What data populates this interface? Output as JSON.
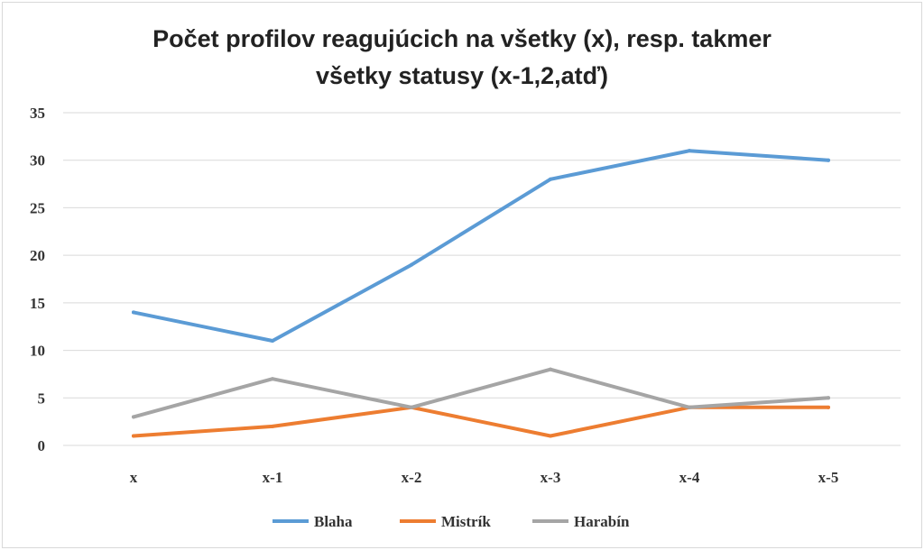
{
  "chart_data": {
    "type": "line",
    "title_lines": [
      "Počet profilov reagujúcich na všetky (x), resp. takmer",
      "všetky statusy (x-1,2,atď)"
    ],
    "categories": [
      "x",
      "x-1",
      "x-2",
      "x-3",
      "x-4",
      "x-5"
    ],
    "series": [
      {
        "name": "Blaha",
        "color": "#5b9bd5",
        "values": [
          14,
          11,
          19,
          28,
          31,
          30
        ]
      },
      {
        "name": "Mistrík",
        "color": "#ed7d31",
        "values": [
          1,
          2,
          4,
          1,
          4,
          4
        ]
      },
      {
        "name": "Harabín",
        "color": "#a5a5a5",
        "values": [
          3,
          7,
          4,
          8,
          4,
          5
        ]
      }
    ],
    "ylim": [
      0,
      35
    ],
    "yticks": [
      0,
      5,
      10,
      15,
      20,
      25,
      30,
      35
    ],
    "grid": true,
    "legend_position": "bottom",
    "xlabel": "",
    "ylabel": ""
  }
}
